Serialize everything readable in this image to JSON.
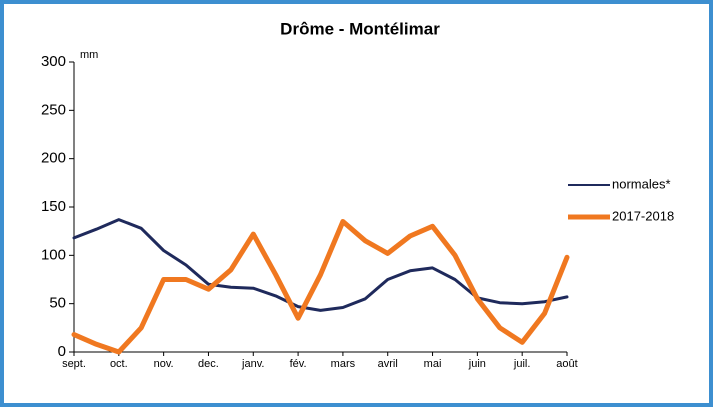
{
  "chart_data": {
    "type": "line",
    "title": "Drôme - Montélimar",
    "y_unit": "mm",
    "x": [
      0,
      0.5,
      1,
      1.5,
      2,
      2.5,
      3,
      3.5,
      4,
      4.5,
      5,
      5.5,
      6,
      6.5,
      7,
      7.5,
      8,
      8.5,
      9,
      9.5,
      10,
      10.5,
      11
    ],
    "xlim": [
      0,
      11
    ],
    "xticks": [
      {
        "value": 0,
        "label": "sept."
      },
      {
        "value": 1,
        "label": "oct."
      },
      {
        "value": 2,
        "label": "nov."
      },
      {
        "value": 3,
        "label": "dec."
      },
      {
        "value": 4,
        "label": "janv."
      },
      {
        "value": 5,
        "label": "fév."
      },
      {
        "value": 6,
        "label": "mars"
      },
      {
        "value": 7,
        "label": "avril"
      },
      {
        "value": 8,
        "label": "mai"
      },
      {
        "value": 9,
        "label": "juin"
      },
      {
        "value": 10,
        "label": "juil."
      },
      {
        "value": 11,
        "label": "août"
      }
    ],
    "ylim": [
      0,
      300
    ],
    "yticks": [
      0,
      50,
      100,
      150,
      200,
      250,
      300
    ],
    "series": [
      {
        "name": "normales*",
        "color": "#1f2a5c",
        "values": [
          118,
          127,
          137,
          128,
          105,
          90,
          70,
          67,
          66,
          58,
          47,
          43,
          46,
          55,
          75,
          84,
          87,
          75,
          56,
          51,
          50,
          52,
          57
        ]
      },
      {
        "name": "2017-2018",
        "color": "#f07820",
        "values": [
          18,
          8,
          0,
          25,
          75,
          75,
          65,
          85,
          122,
          80,
          35,
          80,
          135,
          115,
          102,
          120,
          130,
          100,
          55,
          25,
          10,
          40,
          98
        ]
      }
    ]
  }
}
